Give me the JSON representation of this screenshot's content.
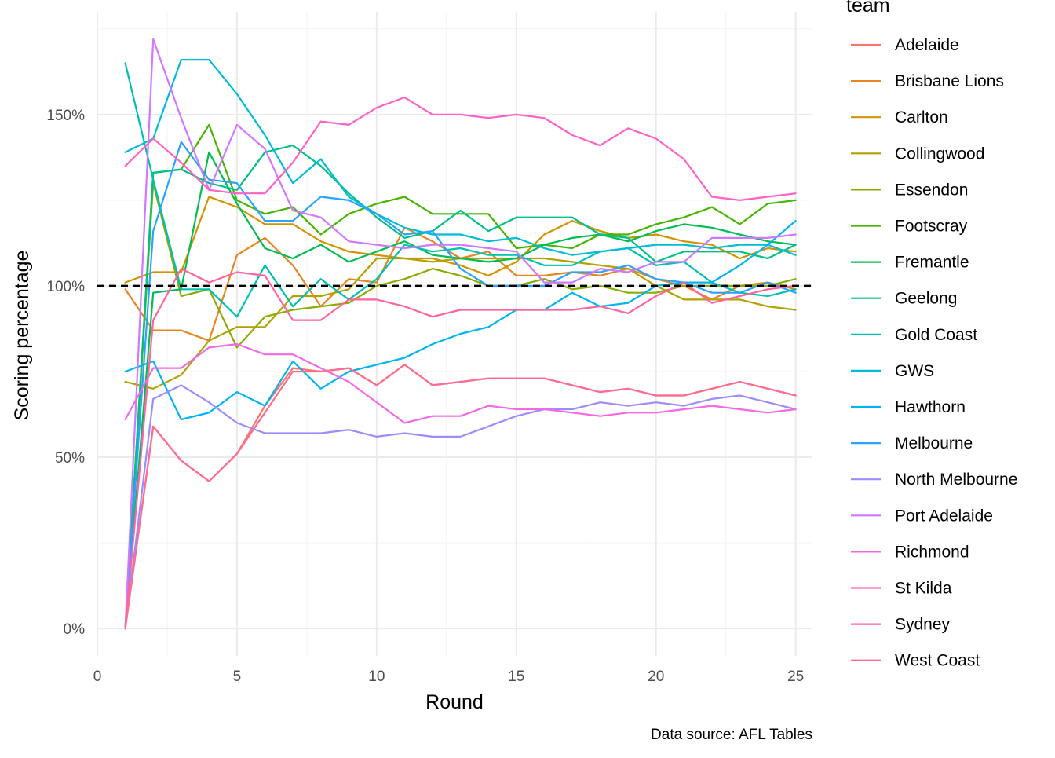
{
  "chart_data": {
    "type": "line",
    "xlabel": "Round",
    "ylabel": "Scoring percentage",
    "caption": "Data source: AFL Tables",
    "legend_title": "team",
    "legend_position": "right",
    "xlim": [
      0,
      25.6
    ],
    "ylim": [
      -8,
      180
    ],
    "x_ticks": [
      0,
      5,
      10,
      15,
      20,
      25
    ],
    "x_tick_labels": [
      "0",
      "5",
      "10",
      "15",
      "20",
      "25"
    ],
    "y_ticks": [
      0,
      50,
      100,
      150
    ],
    "y_tick_labels": [
      "0%",
      "50%",
      "100%",
      "150%"
    ],
    "reference_line": {
      "y": 100,
      "style": "dashed",
      "color": "#000000"
    },
    "grid": true,
    "x": [
      1,
      2,
      3,
      4,
      5,
      6,
      7,
      8,
      9,
      10,
      11,
      12,
      13,
      14,
      15,
      16,
      17,
      18,
      19,
      20,
      21,
      22,
      23,
      24,
      25
    ],
    "series": [
      {
        "name": "Adelaide",
        "color": "#F8766D",
        "values": [
          0,
          59,
          49,
          43,
          51,
          65,
          76,
          75,
          76,
          71,
          77,
          71,
          72,
          73,
          73,
          73,
          71,
          69,
          70,
          68,
          68,
          70,
          72,
          70,
          68
        ]
      },
      {
        "name": "Brisbane Lions",
        "color": "#E7851E",
        "values": [
          99,
          87,
          87,
          84,
          109,
          114,
          106,
          94,
          102,
          101,
          117,
          113,
          108,
          110,
          103,
          103,
          104,
          103,
          105,
          102,
          100,
          96,
          100,
          101,
          99
        ]
      },
      {
        "name": "Carlton",
        "color": "#D09400",
        "values": [
          101,
          104,
          104,
          126,
          123,
          118,
          118,
          113,
          110,
          109,
          108,
          108,
          106,
          103,
          107,
          115,
          119,
          116,
          114,
          115,
          113,
          112,
          108,
          111,
          110
        ]
      },
      {
        "name": "Collingwood",
        "color": "#B2A100",
        "values": [
          72,
          70,
          74,
          84,
          88,
          88,
          97,
          97,
          99,
          108,
          108,
          107,
          108,
          108,
          108,
          108,
          107,
          106,
          105,
          100,
          96,
          96,
          96,
          94,
          93
        ]
      },
      {
        "name": "Essendon",
        "color": "#89AC00",
        "values": [
          0,
          130,
          97,
          99,
          82,
          91,
          93,
          94,
          95,
          100,
          102,
          105,
          103,
          100,
          100,
          102,
          99,
          100,
          98,
          98,
          100,
          100,
          100,
          100,
          102
        ]
      },
      {
        "name": "Footscray",
        "color": "#45B500",
        "values": [
          0,
          133,
          134,
          147,
          125,
          121,
          123,
          115,
          121,
          124,
          126,
          121,
          121,
          121,
          111,
          112,
          111,
          115,
          115,
          118,
          120,
          123,
          118,
          124,
          125
        ]
      },
      {
        "name": "Fremantle",
        "color": "#00BC51",
        "values": [
          0,
          98,
          99,
          139,
          124,
          111,
          108,
          112,
          107,
          110,
          113,
          109,
          108,
          107,
          108,
          112,
          114,
          115,
          113,
          116,
          118,
          117,
          115,
          113,
          112
        ]
      },
      {
        "name": "Geelong",
        "color": "#00C087",
        "values": [
          0,
          133,
          134,
          130,
          128,
          139,
          141,
          135,
          127,
          120,
          114,
          116,
          122,
          116,
          120,
          120,
          120,
          115,
          114,
          107,
          110,
          110,
          110,
          108,
          112
        ]
      },
      {
        "name": "Gold Coast",
        "color": "#00C0B2",
        "values": [
          165,
          131,
          99,
          99,
          91,
          106,
          94,
          102,
          96,
          102,
          112,
          110,
          111,
          109,
          109,
          106,
          106,
          110,
          111,
          106,
          107,
          101,
          98,
          97,
          99
        ]
      },
      {
        "name": "GWS",
        "color": "#00BCD6",
        "values": [
          139,
          143,
          166,
          166,
          156,
          144,
          130,
          137,
          126,
          121,
          117,
          115,
          115,
          113,
          114,
          111,
          109,
          110,
          111,
          112,
          112,
          111,
          112,
          112,
          109
        ]
      },
      {
        "name": "Hawthorn",
        "color": "#00B3F2",
        "values": [
          75,
          78,
          61,
          63,
          69,
          65,
          78,
          70,
          75,
          77,
          79,
          83,
          86,
          88,
          93,
          93,
          98,
          94,
          95,
          100,
          101,
          101,
          106,
          112,
          119
        ]
      },
      {
        "name": "Melbourne",
        "color": "#29A3FF",
        "values": [
          0,
          116,
          142,
          131,
          130,
          119,
          119,
          126,
          125,
          121,
          115,
          116,
          105,
          100,
          100,
          100,
          104,
          104,
          106,
          102,
          101,
          98,
          98,
          101,
          98
        ]
      },
      {
        "name": "North Melbourne",
        "color": "#9C8DFF",
        "values": [
          0,
          67,
          71,
          66,
          60,
          57,
          57,
          57,
          58,
          56,
          57,
          56,
          56,
          59,
          62,
          64,
          64,
          66,
          65,
          66,
          65,
          67,
          68,
          66,
          64
        ]
      },
      {
        "name": "Port Adelaide",
        "color": "#D277FF",
        "values": [
          0,
          172,
          149,
          128,
          147,
          140,
          122,
          120,
          113,
          112,
          111,
          112,
          112,
          111,
          110,
          101,
          101,
          105,
          104,
          107,
          107,
          114,
          114,
          114,
          115
        ]
      },
      {
        "name": "Richmond",
        "color": "#F269E3",
        "values": [
          61,
          76,
          76,
          82,
          83,
          80,
          80,
          76,
          72,
          66,
          60,
          62,
          62,
          65,
          64,
          64,
          63,
          62,
          63,
          63,
          64,
          65,
          64,
          63,
          64
        ]
      },
      {
        "name": "St Kilda",
        "color": "#FF61C7",
        "values": [
          135,
          143,
          136,
          128,
          127,
          127,
          136,
          148,
          147,
          152,
          155,
          150,
          150,
          149,
          150,
          149,
          144,
          141,
          146,
          143,
          137,
          126,
          125,
          126,
          127
        ]
      },
      {
        "name": "Sydney",
        "color": "#FF63A0",
        "values": [
          0,
          90,
          105,
          101,
          104,
          103,
          90,
          90,
          96,
          96,
          94,
          91,
          93,
          93,
          93,
          93,
          93,
          94,
          92,
          97,
          101,
          95,
          97,
          99,
          100
        ]
      },
      {
        "name": "West Coast",
        "color": "#FF6C91",
        "values": [
          0,
          59,
          49,
          43,
          51,
          63,
          75,
          75,
          76,
          71,
          77,
          71,
          72,
          73,
          73,
          73,
          71,
          69,
          70,
          68,
          68,
          70,
          72,
          70,
          68
        ]
      }
    ]
  }
}
